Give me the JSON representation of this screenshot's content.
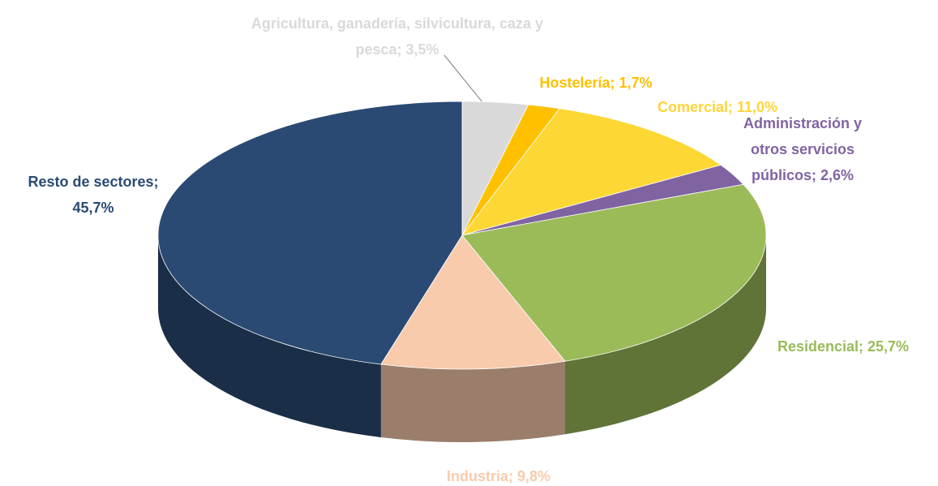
{
  "chart_data": {
    "type": "pie",
    "values": [
      3.5,
      1.7,
      11.0,
      2.6,
      25.7,
      9.8,
      45.7
    ],
    "value_labels": [
      [
        "Agricultura, ganadería, silvicultura, caza y",
        "pesca; 3,5%"
      ],
      [
        "Hostelería; 1,7%"
      ],
      [
        "Comercial; 11,0%"
      ],
      [
        "Administración y",
        "otros servicios",
        "públicos; 2,6%"
      ],
      [
        "Residencial; 25,7%"
      ],
      [
        "Industria; 9,8%"
      ],
      [
        "Resto  de sectores;",
        "45,7%"
      ]
    ],
    "colors": [
      "#d9d9d9",
      "#ffc000",
      "#fdd835",
      "#8064a2",
      "#9bbb59",
      "#f8cbad",
      "#2a4a73"
    ],
    "label_colors": [
      "#d9d9d9",
      "#ffc000",
      "#ffd43a",
      "#8064a2",
      "#9bbb59",
      "#f8cbad",
      "#2a4a73"
    ]
  }
}
